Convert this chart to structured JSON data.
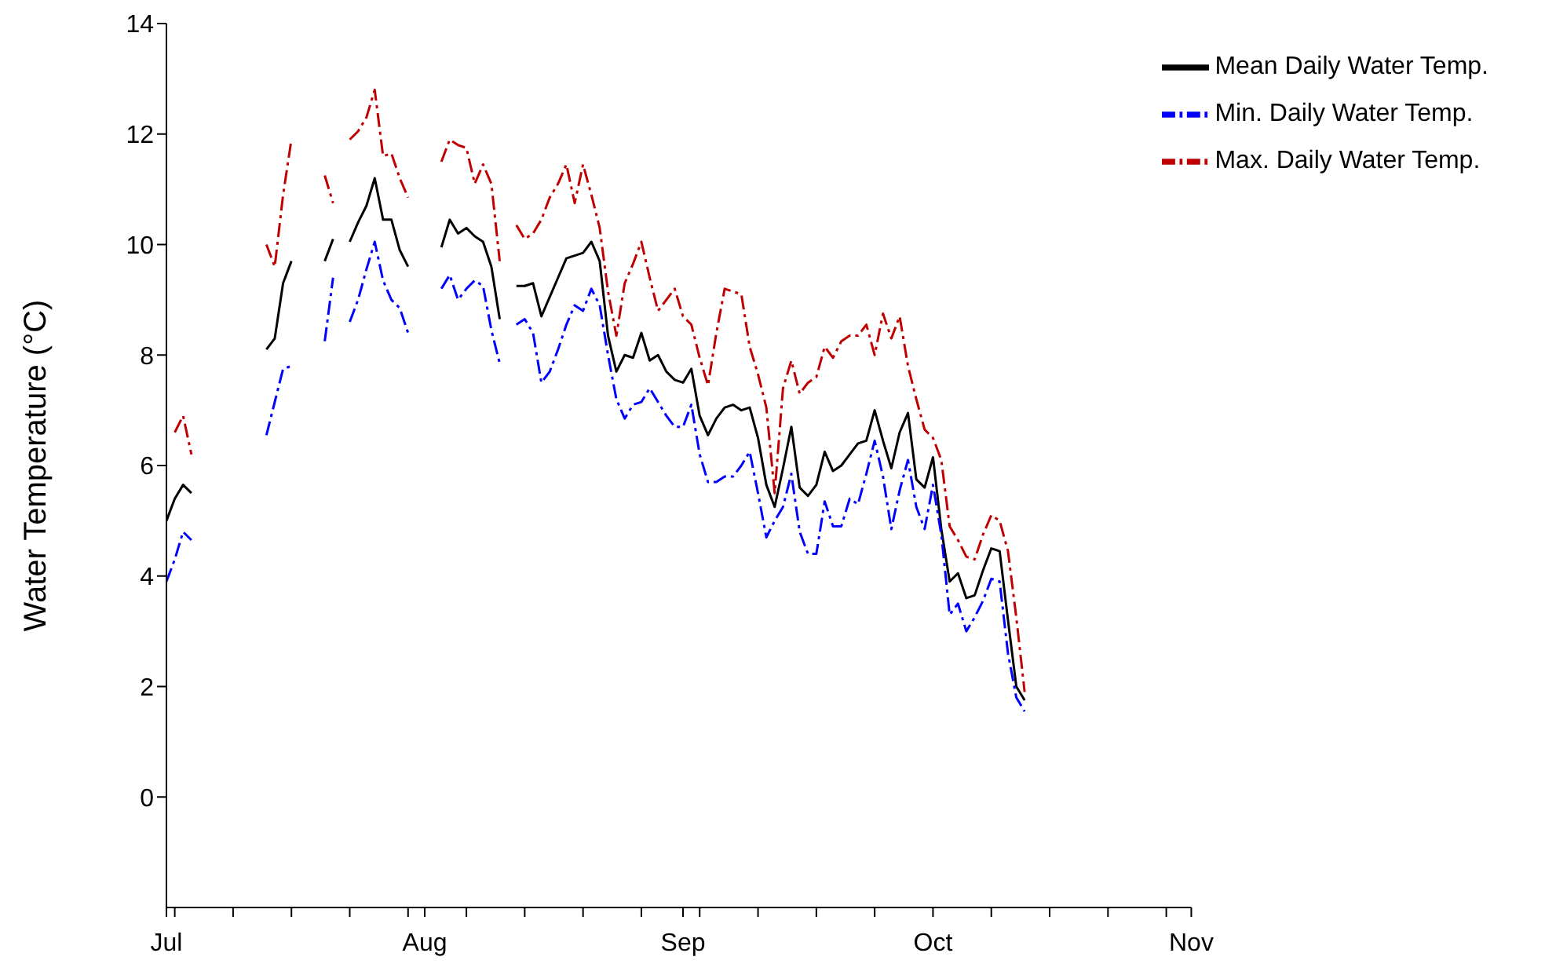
{
  "chart_data": {
    "type": "line",
    "ylabel": "Water Temperature (°C)",
    "xlim": [
      "--07-01",
      "--11-01"
    ],
    "xticks": [
      {
        "value": "--07-01",
        "label": "Jul"
      },
      {
        "value": "--07-02",
        "label": null
      },
      {
        "value": "--07-09",
        "label": null
      },
      {
        "value": "--07-16",
        "label": null
      },
      {
        "value": "--07-23",
        "label": null
      },
      {
        "value": "--07-30",
        "label": null
      },
      {
        "value": "--08-01",
        "label": "Aug"
      },
      {
        "value": "--08-06",
        "label": null
      },
      {
        "value": "--08-13",
        "label": null
      },
      {
        "value": "--08-20",
        "label": null
      },
      {
        "value": "--08-27",
        "label": null
      },
      {
        "value": "--09-01",
        "label": "Sep"
      },
      {
        "value": "--09-03",
        "label": null
      },
      {
        "value": "--09-10",
        "label": null
      },
      {
        "value": "--09-17",
        "label": null
      },
      {
        "value": "--09-24",
        "label": null
      },
      {
        "value": "--10-01",
        "label": "Oct"
      },
      {
        "value": "--10-08",
        "label": null
      },
      {
        "value": "--10-15",
        "label": null
      },
      {
        "value": "--10-22",
        "label": null
      },
      {
        "value": "--10-29",
        "label": null
      },
      {
        "value": "--11-01",
        "label": "Nov"
      }
    ],
    "ylim": [
      -2,
      14
    ],
    "yticks": [
      0,
      2,
      4,
      6,
      8,
      10,
      12,
      14
    ],
    "grid": false,
    "legend": "top right",
    "marker": "none",
    "x": [
      "--07-01",
      "--07-02",
      "--07-03",
      "--07-04",
      "--07-05",
      "--07-06",
      "--07-07",
      "--07-08",
      "--07-09",
      "--07-10",
      "--07-11",
      "--07-12",
      "--07-13",
      "--07-14",
      "--07-15",
      "--07-16",
      "--07-17",
      "--07-18",
      "--07-19",
      "--07-20",
      "--07-21",
      "--07-22",
      "--07-23",
      "--07-24",
      "--07-25",
      "--07-26",
      "--07-27",
      "--07-28",
      "--07-29",
      "--07-30",
      "--07-31",
      "--08-01",
      "--08-02",
      "--08-03",
      "--08-04",
      "--08-05",
      "--08-06",
      "--08-07",
      "--08-08",
      "--08-09",
      "--08-10",
      "--08-11",
      "--08-12",
      "--08-13",
      "--08-14",
      "--08-15",
      "--08-16",
      "--08-17",
      "--08-18",
      "--08-19",
      "--08-20",
      "--08-21",
      "--08-22",
      "--08-23",
      "--08-24",
      "--08-25",
      "--08-26",
      "--08-27",
      "--08-28",
      "--08-29",
      "--08-30",
      "--08-31",
      "--09-01",
      "--09-02",
      "--09-03",
      "--09-04",
      "--09-05",
      "--09-06",
      "--09-07",
      "--09-08",
      "--09-09",
      "--09-10",
      "--09-11",
      "--09-12",
      "--09-13",
      "--09-14",
      "--09-15",
      "--09-16",
      "--09-17",
      "--09-18",
      "--09-19",
      "--09-20",
      "--09-21",
      "--09-22",
      "--09-23",
      "--09-24",
      "--09-25",
      "--09-26",
      "--09-27",
      "--09-28",
      "--09-29",
      "--09-30",
      "--10-01",
      "--10-02",
      "--10-03",
      "--10-04",
      "--10-05",
      "--10-06",
      "--10-07",
      "--10-08",
      "--10-09",
      "--10-10",
      "--10-11",
      "--10-12"
    ],
    "series": [
      {
        "name": "Mean Daily Water Temp.",
        "color": "#000000",
        "line_style": "solid",
        "values": [
          5.0,
          5.4,
          5.65,
          5.5,
          null,
          null,
          null,
          null,
          null,
          null,
          null,
          null,
          8.1,
          8.3,
          9.3,
          9.7,
          null,
          null,
          null,
          9.7,
          10.1,
          null,
          10.05,
          10.4,
          10.7,
          11.2,
          10.45,
          10.45,
          9.9,
          9.6,
          null,
          null,
          null,
          9.95,
          10.45,
          10.2,
          10.3,
          10.15,
          10.05,
          9.6,
          8.65,
          null,
          9.25,
          9.25,
          9.3,
          8.7,
          9.05,
          9.4,
          9.75,
          9.8,
          9.85,
          10.05,
          9.7,
          8.35,
          7.7,
          8.0,
          7.95,
          8.4,
          7.9,
          8.0,
          7.7,
          7.55,
          7.5,
          7.75,
          6.9,
          6.55,
          6.85,
          7.05,
          7.1,
          7.0,
          7.05,
          6.5,
          5.65,
          5.25,
          5.95,
          6.7,
          5.6,
          5.45,
          5.65,
          6.25,
          5.9,
          6.0,
          6.2,
          6.4,
          6.45,
          7.0,
          6.45,
          5.95,
          6.6,
          6.95,
          5.75,
          5.6,
          6.15,
          4.85,
          3.9,
          4.05,
          3.6,
          3.65,
          4.1,
          4.5,
          4.45,
          3.2,
          2.0,
          1.75
        ]
      },
      {
        "name": "Min. Daily Water Temp.",
        "color": "#0000ff",
        "line_style": "dashed",
        "values": [
          3.9,
          4.3,
          4.8,
          4.65,
          null,
          null,
          null,
          null,
          null,
          null,
          null,
          null,
          6.55,
          7.15,
          7.75,
          7.8,
          null,
          null,
          null,
          8.25,
          9.4,
          null,
          8.6,
          9.0,
          9.55,
          10.05,
          9.35,
          9.0,
          8.85,
          8.4,
          null,
          null,
          null,
          9.2,
          9.45,
          9.0,
          9.2,
          9.35,
          9.25,
          8.45,
          7.85,
          null,
          8.55,
          8.65,
          8.4,
          7.5,
          7.7,
          8.1,
          8.55,
          8.9,
          8.8,
          9.2,
          8.9,
          8.0,
          7.2,
          6.85,
          7.1,
          7.15,
          7.4,
          7.15,
          6.9,
          6.7,
          6.7,
          7.1,
          6.2,
          5.7,
          5.7,
          5.8,
          5.8,
          6.0,
          6.25,
          5.5,
          4.7,
          5.0,
          5.25,
          5.85,
          4.8,
          4.4,
          4.4,
          5.35,
          4.9,
          4.9,
          5.4,
          5.3,
          5.85,
          6.45,
          5.8,
          4.85,
          5.55,
          6.1,
          5.25,
          4.85,
          5.65,
          4.75,
          3.3,
          3.5,
          3.0,
          3.25,
          3.55,
          3.95,
          3.9,
          2.6,
          1.8,
          1.55
        ]
      },
      {
        "name": "Max. Daily Water Temp.",
        "color": "#c00000",
        "line_style": "dashed",
        "values": [
          null,
          6.6,
          6.9,
          6.2,
          null,
          null,
          null,
          null,
          null,
          null,
          null,
          null,
          10.0,
          9.6,
          10.9,
          11.9,
          null,
          null,
          null,
          11.25,
          10.75,
          null,
          11.9,
          12.05,
          12.3,
          12.8,
          11.6,
          11.65,
          11.2,
          10.85,
          null,
          null,
          null,
          11.5,
          11.9,
          11.8,
          11.75,
          11.1,
          11.45,
          11.1,
          9.7,
          null,
          10.35,
          10.1,
          10.2,
          10.45,
          10.85,
          11.1,
          11.45,
          10.75,
          11.45,
          10.9,
          10.3,
          9.15,
          8.35,
          9.3,
          9.65,
          10.05,
          9.4,
          8.8,
          9.0,
          9.2,
          8.7,
          8.55,
          7.95,
          7.45,
          8.4,
          9.2,
          9.15,
          9.1,
          8.15,
          7.65,
          7.05,
          5.5,
          7.4,
          7.9,
          7.3,
          7.5,
          7.6,
          8.15,
          7.95,
          8.25,
          8.35,
          8.35,
          8.55,
          8.0,
          8.75,
          8.3,
          8.7,
          7.8,
          7.2,
          6.65,
          6.5,
          6.1,
          4.9,
          4.65,
          4.35,
          4.3,
          4.75,
          5.1,
          5.0,
          4.45,
          3.25,
          1.9
        ]
      }
    ]
  }
}
